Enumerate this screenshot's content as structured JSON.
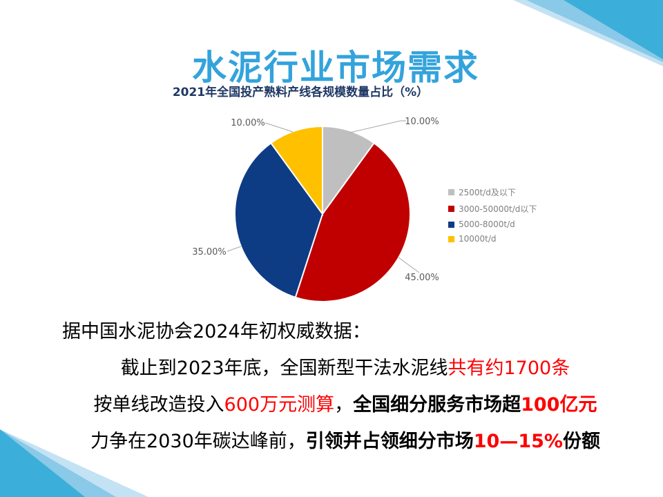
{
  "slide": {
    "title": "水泥行业市场需求"
  },
  "chart_data": {
    "type": "pie",
    "title": "2021年全国投产熟料产线各规模数量占比（%）",
    "categories": [
      "2500t/d及以下",
      "3000-50000t/d以下",
      "5000-8000t/d",
      "10000t/d"
    ],
    "values": [
      10,
      45,
      35,
      10
    ],
    "labels": [
      "10.00%",
      "45.00%",
      "35.00%",
      "10.00%"
    ],
    "colors": [
      "#BFBFBF",
      "#C00000",
      "#0D3C85",
      "#FFC000"
    ],
    "legend_position": "right",
    "start_angle_deg": -90,
    "direction": "clockwise"
  },
  "body": {
    "lines": [
      {
        "align": "left",
        "segments": [
          {
            "text": "据中国水泥协会2024年初权威数据：",
            "color": "black",
            "bold": false
          }
        ]
      },
      {
        "align": "center",
        "segments": [
          {
            "text": "截止到2023年底，全国新型干法水泥线",
            "color": "black",
            "bold": false
          },
          {
            "text": "共有约1700条",
            "color": "red",
            "bold": false
          }
        ]
      },
      {
        "align": "center",
        "segments": [
          {
            "text": "按单线改造投入",
            "color": "black",
            "bold": false
          },
          {
            "text": "600万元测算",
            "color": "red",
            "bold": false
          },
          {
            "text": "，",
            "color": "black",
            "bold": false
          },
          {
            "text": "全国细分服务市场超",
            "color": "black",
            "bold": true
          },
          {
            "text": "100亿元",
            "color": "red",
            "bold": true
          }
        ]
      },
      {
        "align": "center",
        "segments": [
          {
            "text": "力争在2030年碳达峰前，",
            "color": "black",
            "bold": false
          },
          {
            "text": "引领并占领细分市场",
            "color": "black",
            "bold": true
          },
          {
            "text": "10—15%",
            "color": "red",
            "bold": true
          },
          {
            "text": "份额",
            "color": "black",
            "bold": true
          }
        ]
      }
    ]
  },
  "colors": {
    "title": "#33A3DC",
    "chart_title": "#1F3864",
    "body_red": "#FF0000",
    "body_black": "#000000",
    "label_gray": "#595959",
    "legend_text": "#7F7F7F",
    "leader_line": "#A6A6A6",
    "deco_dark": "#3BAFDA",
    "deco_medium": "#8AC9E7",
    "deco_pale": "#C3E2F4"
  }
}
